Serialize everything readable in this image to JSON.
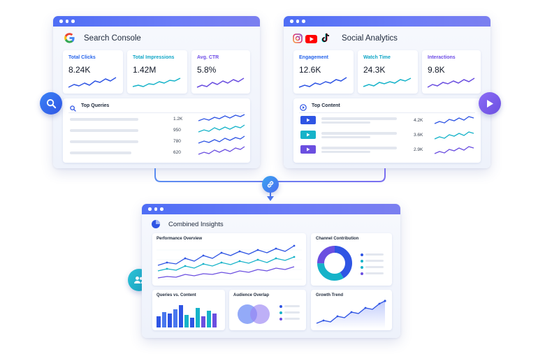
{
  "search_console": {
    "title": "Search Console",
    "kpis": [
      {
        "label": "Total Clicks",
        "value": "8.24K",
        "color": "#2563eb"
      },
      {
        "label": "Total Impressions",
        "value": "1.42M",
        "color": "#0ea5c6"
      },
      {
        "label": "Avg. CTR",
        "value": "5.8%",
        "color": "#6d4ce6"
      }
    ],
    "queries_title": "Top Queries",
    "query_values": [
      "1.2K",
      "950",
      "780",
      "620"
    ],
    "icon": "google-logo-icon"
  },
  "social": {
    "title": "Social Analytics",
    "kpis": [
      {
        "label": "Engagement",
        "value": "12.6K",
        "color": "#2563eb"
      },
      {
        "label": "Watch Time",
        "value": "24.3K",
        "color": "#0ea5c6"
      },
      {
        "label": "Interactions",
        "value": "9.8K",
        "color": "#6d4ce6"
      }
    ],
    "content_title": "Top Content",
    "content_values": [
      "4.2K",
      "3.6K",
      "2.9K"
    ],
    "icons": [
      "instagram-icon",
      "youtube-icon",
      "tiktok-icon"
    ]
  },
  "combined": {
    "title": "Combined Insights",
    "performance_title": "Performance Overview",
    "channel_title": "Channel Contribution",
    "queries_vs_content_title": "Queries vs. Content",
    "audience_title": "Audience Overlap",
    "growth_title": "Growth Trend"
  },
  "colors": {
    "blue": "#2f55e4",
    "teal": "#16b3c9",
    "purple": "#6b4fe0",
    "header": "#5470f4"
  }
}
